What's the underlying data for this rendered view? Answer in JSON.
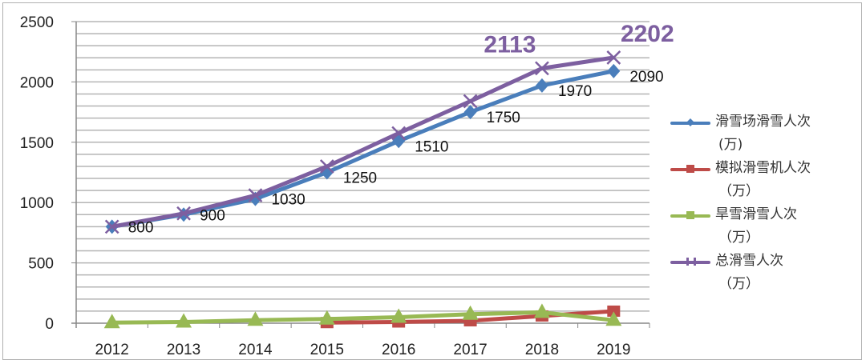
{
  "chart_data": {
    "type": "line",
    "title": "",
    "xlabel": "",
    "ylabel": "",
    "categories": [
      "2012",
      "2013",
      "2014",
      "2015",
      "2016",
      "2017",
      "2018",
      "2019"
    ],
    "ylim": [
      0,
      2500
    ],
    "yticks": [
      "0",
      "500",
      "1000",
      "1500",
      "2000",
      "2500"
    ],
    "grid": true,
    "legend_position": "right",
    "series": [
      {
        "name": "滑雪场滑雪人次",
        "unit": "(万)",
        "color": "#4a7ebb",
        "marker": "diamond",
        "values": [
          800,
          900,
          1030,
          1250,
          1510,
          1750,
          1970,
          2090
        ],
        "labels": [
          "800",
          "900",
          "1030",
          "1250",
          "1510",
          "1750",
          "1970",
          "2090"
        ]
      },
      {
        "name": "模拟滑雪机人次",
        "unit": "（万）",
        "color": "#be4b48",
        "marker": "square",
        "values": [
          null,
          null,
          null,
          5,
          10,
          20,
          60,
          100
        ]
      },
      {
        "name": "旱雪滑雪人次",
        "unit": "（万）",
        "color": "#98b954",
        "marker": "triangle",
        "values": [
          5,
          10,
          25,
          35,
          50,
          75,
          90,
          25
        ]
      },
      {
        "name": "总滑雪人次",
        "unit": "（万）",
        "color": "#7d5fa0",
        "marker": "x",
        "values": [
          800,
          910,
          1060,
          1300,
          1575,
          1840,
          2113,
          2202
        ],
        "labels": [
          null,
          null,
          null,
          null,
          null,
          null,
          "2113",
          "2202"
        ]
      }
    ]
  }
}
